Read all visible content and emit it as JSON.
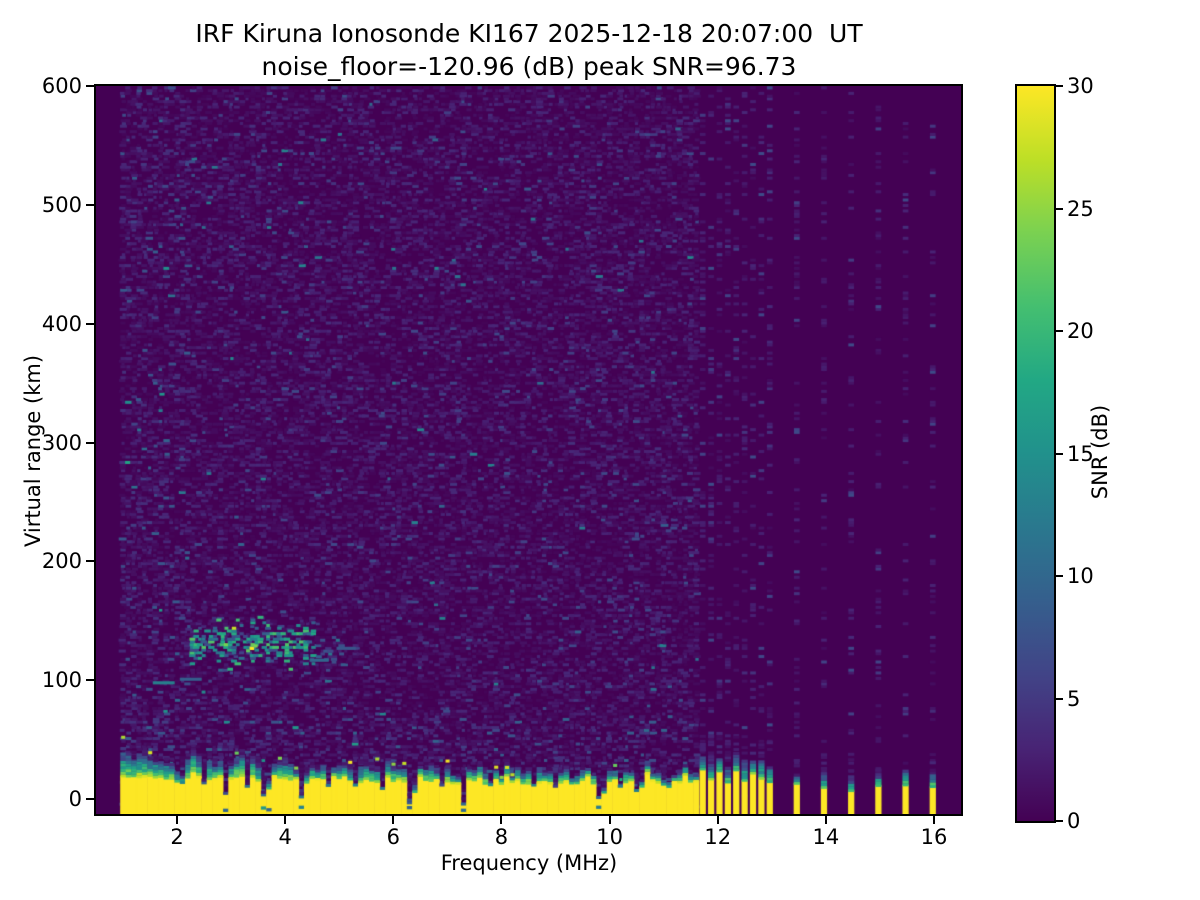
{
  "chart_data": {
    "type": "heatmap",
    "title": "IRF Kiruna Ionosonde KI167 2025-12-18 20:07:00  UT",
    "subtitle": "noise_floor=-120.96 (dB) peak SNR=96.73",
    "xlabel": "Frequency (MHz)",
    "ylabel": "Virtual range (km)",
    "xlim": [
      0.5,
      16.5
    ],
    "ylim": [
      -12.5,
      600
    ],
    "x_ticks": [
      2,
      4,
      6,
      8,
      10,
      12,
      14,
      16
    ],
    "y_ticks": [
      0,
      100,
      200,
      300,
      400,
      500,
      600
    ],
    "grid": false,
    "noise_floor_db": -120.96,
    "peak_snr_db": 96.73,
    "colorbar": {
      "label": "SNR (dB)",
      "min": 0,
      "max": 30,
      "ticks": [
        0,
        5,
        10,
        15,
        20,
        25,
        30
      ]
    },
    "colormap": {
      "name": "viridis",
      "stops": [
        "#440154",
        "#482475",
        "#414487",
        "#355f8d",
        "#2a788e",
        "#21918c",
        "#22a884",
        "#44bf70",
        "#7ad151",
        "#bddf26",
        "#fde725"
      ]
    },
    "features": {
      "background_snr_db": 0,
      "data_f_start_mhz": 1.0,
      "noise_speckle": {
        "f_range": [
          1.0,
          11.62
        ],
        "km_range": [
          -11,
          599
        ],
        "cell_mhz": 0.1,
        "cell_km": 2.3,
        "tiers": [
          [
            0.3,
            0.3,
            1.4
          ],
          [
            0.22,
            1.4,
            3.4
          ],
          [
            0.04,
            3.4,
            7.0
          ],
          [
            0.004,
            7.0,
            14.0
          ]
        ],
        "low_alt_boost_km": 70,
        "low_freq_boost_mhz": 2.3
      },
      "faint_columns": [
        {
          "f": 3.5,
          "km_range": [
            150,
            560
          ],
          "density": 0.12,
          "snr_range": [
            2,
            5
          ]
        }
      ],
      "ground_return": {
        "f_range": [
          1.0,
          11.62
        ],
        "snr_db": 30,
        "top_km_profile": [
          [
            1.0,
            20
          ],
          [
            2,
            18
          ],
          [
            4,
            17
          ],
          [
            6,
            15
          ],
          [
            8,
            14
          ],
          [
            10,
            15
          ],
          [
            11.62,
            14
          ]
        ],
        "transition_km_profile": [
          [
            1.0,
            20
          ],
          [
            4,
            15
          ],
          [
            8,
            11
          ],
          [
            11.62,
            9
          ]
        ],
        "notches": [
          {
            "f": 2.05,
            "w": 0.1,
            "top": 10
          },
          {
            "f": 2.52,
            "w": 0.08,
            "top": 13
          },
          {
            "f": 2.9,
            "w": 0.11,
            "top": 5
          },
          {
            "f": 3.3,
            "w": 0.09,
            "top": 11
          },
          {
            "f": 3.62,
            "w": 0.16,
            "top": 3
          },
          {
            "f": 4.3,
            "w": 0.14,
            "top": 2
          },
          {
            "f": 4.78,
            "w": 0.08,
            "top": 11
          },
          {
            "f": 5.3,
            "w": 0.08,
            "top": 12
          },
          {
            "f": 5.78,
            "w": 0.09,
            "top": 8
          },
          {
            "f": 6.33,
            "w": 0.13,
            "top": -6
          },
          {
            "f": 6.9,
            "w": 0.07,
            "top": 12
          },
          {
            "f": 7.3,
            "w": 0.11,
            "top": -4
          },
          {
            "f": 7.78,
            "w": 0.07,
            "top": 12
          },
          {
            "f": 8.6,
            "w": 0.07,
            "top": 12
          },
          {
            "f": 9.0,
            "w": 0.07,
            "top": 11
          },
          {
            "f": 9.35,
            "w": 0.08,
            "top": 9
          },
          {
            "f": 9.84,
            "w": 0.11,
            "top": -5
          },
          {
            "f": 10.2,
            "w": 0.07,
            "top": 11
          },
          {
            "f": 10.54,
            "w": 0.1,
            "top": 4
          },
          {
            "f": 11.05,
            "w": 0.09,
            "top": 7
          }
        ]
      },
      "e_region_echo": {
        "clusters": [
          {
            "f_range": [
              2.28,
              4.55
            ],
            "km_center": 130,
            "km_sigma": 13,
            "density": 0.5,
            "snr_range": [
              6,
              22
            ]
          },
          {
            "f_range": [
              4.55,
              5.2
            ],
            "km_center": 124,
            "km_sigma": 9,
            "density": 0.18,
            "snr_range": [
              5,
              12
            ]
          }
        ],
        "core": {
          "f": 3.38,
          "km": 127,
          "snr_db": 30
        },
        "dashes": [
          {
            "f_range": [
              1.55,
              1.95
            ],
            "km": 98,
            "snr_db": 13
          },
          {
            "f_range": [
              2.05,
              2.45
            ],
            "km": 101,
            "snr_db": 9
          },
          {
            "f_range": [
              4.45,
              4.8
            ],
            "km": 117,
            "snr_db": 10
          },
          {
            "f_range": [
              4.95,
              5.3
            ],
            "km": 127,
            "snr_db": 8
          }
        ]
      },
      "rfi_stripes": {
        "stripe_width_mhz": 0.11,
        "cluster": {
          "f_start": 11.72,
          "f_step": 0.155,
          "count": 9,
          "yellow_top_km": [
            14,
            26
          ],
          "transition_km": [
            12,
            24
          ]
        },
        "sparse": {
          "f_start": 13.46,
          "f_step": 0.503,
          "count": 6,
          "yellow_top_km": [
            5,
            14
          ],
          "transition_km": [
            8,
            18
          ]
        },
        "column_noise": {
          "density": 0.2,
          "snr_range": [
            0.8,
            7.0
          ]
        }
      }
    }
  }
}
